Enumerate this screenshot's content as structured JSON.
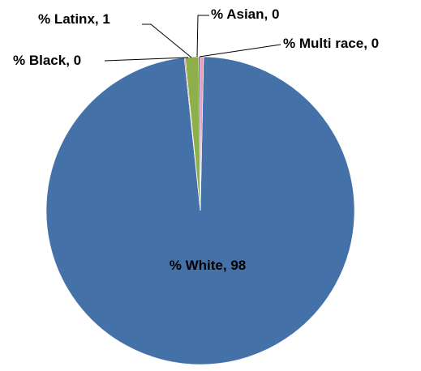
{
  "chart_data": {
    "type": "pie",
    "title": "",
    "slices": [
      {
        "label": "% White",
        "value": 98,
        "display": "% White, 98",
        "color": "#4472a8"
      },
      {
        "label": "% Black",
        "value": 0,
        "display": "% Black, 0",
        "color": "#c0504d"
      },
      {
        "label": "% Latinx",
        "value": 1,
        "display": "% Latinx, 1",
        "color": "#8db04a"
      },
      {
        "label": "% Asian",
        "value": 0,
        "display": "% Asian, 0",
        "color": "#7e62a1"
      },
      {
        "label": "% Multi race",
        "value": 0,
        "display": "% Multi race, 0",
        "color": "#e89cb8"
      }
    ]
  }
}
